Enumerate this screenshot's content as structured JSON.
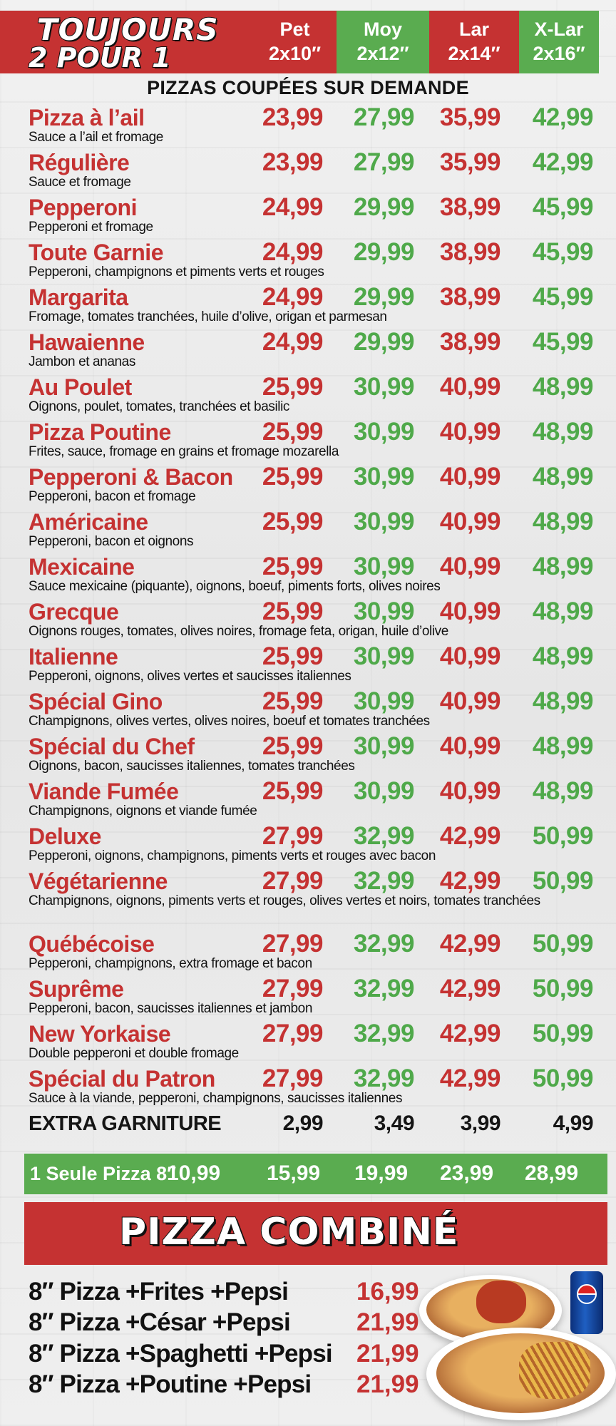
{
  "header": {
    "title_line1": "TOUJOURS",
    "title_line2": "2 POUR 1",
    "sizes": [
      {
        "label": "Pet",
        "size": "2x10″"
      },
      {
        "label": "Moy",
        "size": "2x12″"
      },
      {
        "label": "Lar",
        "size": "2x14″"
      },
      {
        "label": "X-Lar",
        "size": "2x16″"
      }
    ],
    "subtitle": "PIZZAS COUPÉES SUR DEMANDE"
  },
  "colors": {
    "red": "#c53232",
    "green": "#5aac50"
  },
  "pizzas": [
    {
      "name": "Pizza à l’ail",
      "desc": "Sauce a l’ail et fromage",
      "prices": [
        "23,99",
        "27,99",
        "35,99",
        "42,99"
      ]
    },
    {
      "name": "Régulière",
      "desc": "Sauce et fromage",
      "prices": [
        "23,99",
        "27,99",
        "35,99",
        "42,99"
      ]
    },
    {
      "name": "Pepperoni",
      "desc": "Pepperoni et fromage",
      "prices": [
        "24,99",
        "29,99",
        "38,99",
        "45,99"
      ]
    },
    {
      "name": "Toute Garnie",
      "desc": "Pepperoni, champignons et piments verts et rouges",
      "prices": [
        "24,99",
        "29,99",
        "38,99",
        "45,99"
      ]
    },
    {
      "name": "Margarita",
      "desc": "Fromage, tomates tranchées, huile d’olive, origan et parmesan",
      "prices": [
        "24,99",
        "29,99",
        "38,99",
        "45,99"
      ]
    },
    {
      "name": "Hawaienne",
      "desc": "Jambon et ananas",
      "prices": [
        "24,99",
        "29,99",
        "38,99",
        "45,99"
      ]
    },
    {
      "name": "Au Poulet",
      "desc": "Oignons, poulet, tomates, tranchées et basilic",
      "prices": [
        "25,99",
        "30,99",
        "40,99",
        "48,99"
      ]
    },
    {
      "name": "Pizza Poutine",
      "desc": "Frites, sauce, fromage en grains et fromage mozarella",
      "prices": [
        "25,99",
        "30,99",
        "40,99",
        "48,99"
      ]
    },
    {
      "name": "Pepperoni & Bacon",
      "desc": "Pepperoni, bacon  et fromage",
      "prices": [
        "25,99",
        "30,99",
        "40,99",
        "48,99"
      ]
    },
    {
      "name": "Américaine",
      "desc": "Pepperoni, bacon et oignons",
      "prices": [
        "25,99",
        "30,99",
        "40,99",
        "48,99"
      ]
    },
    {
      "name": "Mexicaine",
      "desc": "Sauce mexicaine (piquante), oignons, boeuf, piments forts, olives noires",
      "prices": [
        "25,99",
        "30,99",
        "40,99",
        "48,99"
      ]
    },
    {
      "name": "Grecque",
      "desc": "Oignons rouges, tomates, olives noires, fromage feta, origan, huile d’olive",
      "prices": [
        "25,99",
        "30,99",
        "40,99",
        "48,99"
      ]
    },
    {
      "name": "Italienne",
      "desc": "Pepperoni, oignons, olives vertes et saucisses italiennes",
      "prices": [
        "25,99",
        "30,99",
        "40,99",
        "48,99"
      ]
    },
    {
      "name": "Spécial Gino",
      "desc": "Champignons, olives vertes, olives noires, boeuf et tomates tranchées",
      "prices": [
        "25,99",
        "30,99",
        "40,99",
        "48,99"
      ]
    },
    {
      "name": "Spécial du Chef",
      "desc": "Oignons, bacon, saucisses italiennes, tomates tranchées",
      "prices": [
        "25,99",
        "30,99",
        "40,99",
        "48,99"
      ]
    },
    {
      "name": "Viande Fumée",
      "desc": "Champignons, oignons et viande fumée",
      "prices": [
        "25,99",
        "30,99",
        "40,99",
        "48,99"
      ]
    },
    {
      "name": "Deluxe",
      "desc": "Pepperoni, oignons, champignons, piments verts et rouges avec bacon",
      "prices": [
        "27,99",
        "32,99",
        "42,99",
        "50,99"
      ]
    },
    {
      "name": "Végétarienne",
      "desc": "Champignons, oignons, piments verts et rouges, olives vertes et noirs, tomates tranchées",
      "prices": [
        "27,99",
        "32,99",
        "42,99",
        "50,99"
      ]
    },
    {
      "name": "Québécoise",
      "desc": "Pepperoni, champignons, extra fromage et bacon",
      "prices": [
        "27,99",
        "32,99",
        "42,99",
        "50,99"
      ]
    },
    {
      "name": "Suprême",
      "desc": "Pepperoni, bacon, saucisses italiennes et jambon",
      "prices": [
        "27,99",
        "32,99",
        "42,99",
        "50,99"
      ]
    },
    {
      "name": "New Yorkaise",
      "desc": "Double pepperoni et double fromage",
      "prices": [
        "27,99",
        "32,99",
        "42,99",
        "50,99"
      ]
    },
    {
      "name": "Spécial du Patron",
      "desc": "Sauce à la viande, pepperoni, champignons, saucisses italiennes",
      "prices": [
        "27,99",
        "32,99",
        "42,99",
        "50,99"
      ]
    }
  ],
  "extra": {
    "label": "EXTRA GARNITURE",
    "prices": [
      "2,99",
      "3,49",
      "3,99",
      "4,99"
    ]
  },
  "single": {
    "label": "1 Seule Pizza 8″",
    "prices": [
      "10,99",
      "15,99",
      "19,99",
      "23,99",
      "28,99"
    ]
  },
  "combo": {
    "title": "PIZZA COMBINÉ",
    "items": [
      {
        "label": "8″ Pizza +Frites +Pepsi",
        "price": "16,99"
      },
      {
        "label": "8″ Pizza +César +Pepsi",
        "price": "21,99"
      },
      {
        "label": "8″ Pizza +Spaghetti +Pepsi",
        "price": "21,99"
      },
      {
        "label": "8″ Pizza +Poutine +Pepsi",
        "price": "21,99"
      }
    ],
    "can_text": "pepsi"
  }
}
